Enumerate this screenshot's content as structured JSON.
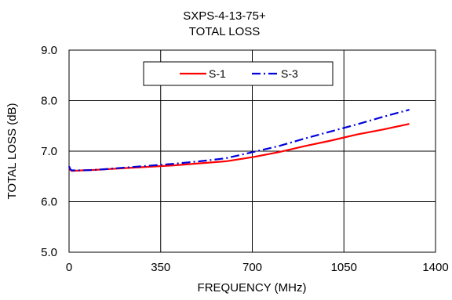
{
  "chart_data": {
    "type": "line",
    "title": "SXPS-4-13-75+",
    "subtitle": "TOTAL LOSS",
    "xlabel": "FREQUENCY (MHz)",
    "ylabel": "TOTAL  LOSS (dB)",
    "xlim": [
      0,
      1400
    ],
    "ylim": [
      5.0,
      9.0
    ],
    "xticks": [
      0,
      350,
      700,
      1050,
      1400
    ],
    "xtick_labels": [
      "0",
      "350",
      "700",
      "1050",
      "1400"
    ],
    "yticks": [
      5.0,
      6.0,
      7.0,
      8.0,
      9.0
    ],
    "ytick_labels": [
      "5.0",
      "6.0",
      "7.0",
      "8.0",
      "9.0"
    ],
    "grid": true,
    "legend_position": "top-center",
    "series": [
      {
        "name": "S-1",
        "color": "#ff0000",
        "style": "solid",
        "x": [
          0,
          5,
          10,
          50,
          100,
          200,
          300,
          400,
          500,
          600,
          700,
          800,
          900,
          1000,
          1100,
          1200,
          1300
        ],
        "y": [
          6.68,
          6.63,
          6.61,
          6.62,
          6.63,
          6.66,
          6.69,
          6.72,
          6.76,
          6.8,
          6.88,
          6.98,
          7.1,
          7.21,
          7.33,
          7.43,
          7.54
        ]
      },
      {
        "name": "S-3",
        "color": "#0000dd",
        "style": "dashdot",
        "x": [
          0,
          5,
          10,
          50,
          100,
          200,
          300,
          400,
          500,
          600,
          700,
          800,
          900,
          1000,
          1100,
          1200,
          1300
        ],
        "y": [
          6.7,
          6.64,
          6.62,
          6.62,
          6.63,
          6.67,
          6.71,
          6.75,
          6.8,
          6.86,
          6.98,
          7.1,
          7.25,
          7.39,
          7.53,
          7.68,
          7.82
        ]
      }
    ]
  }
}
